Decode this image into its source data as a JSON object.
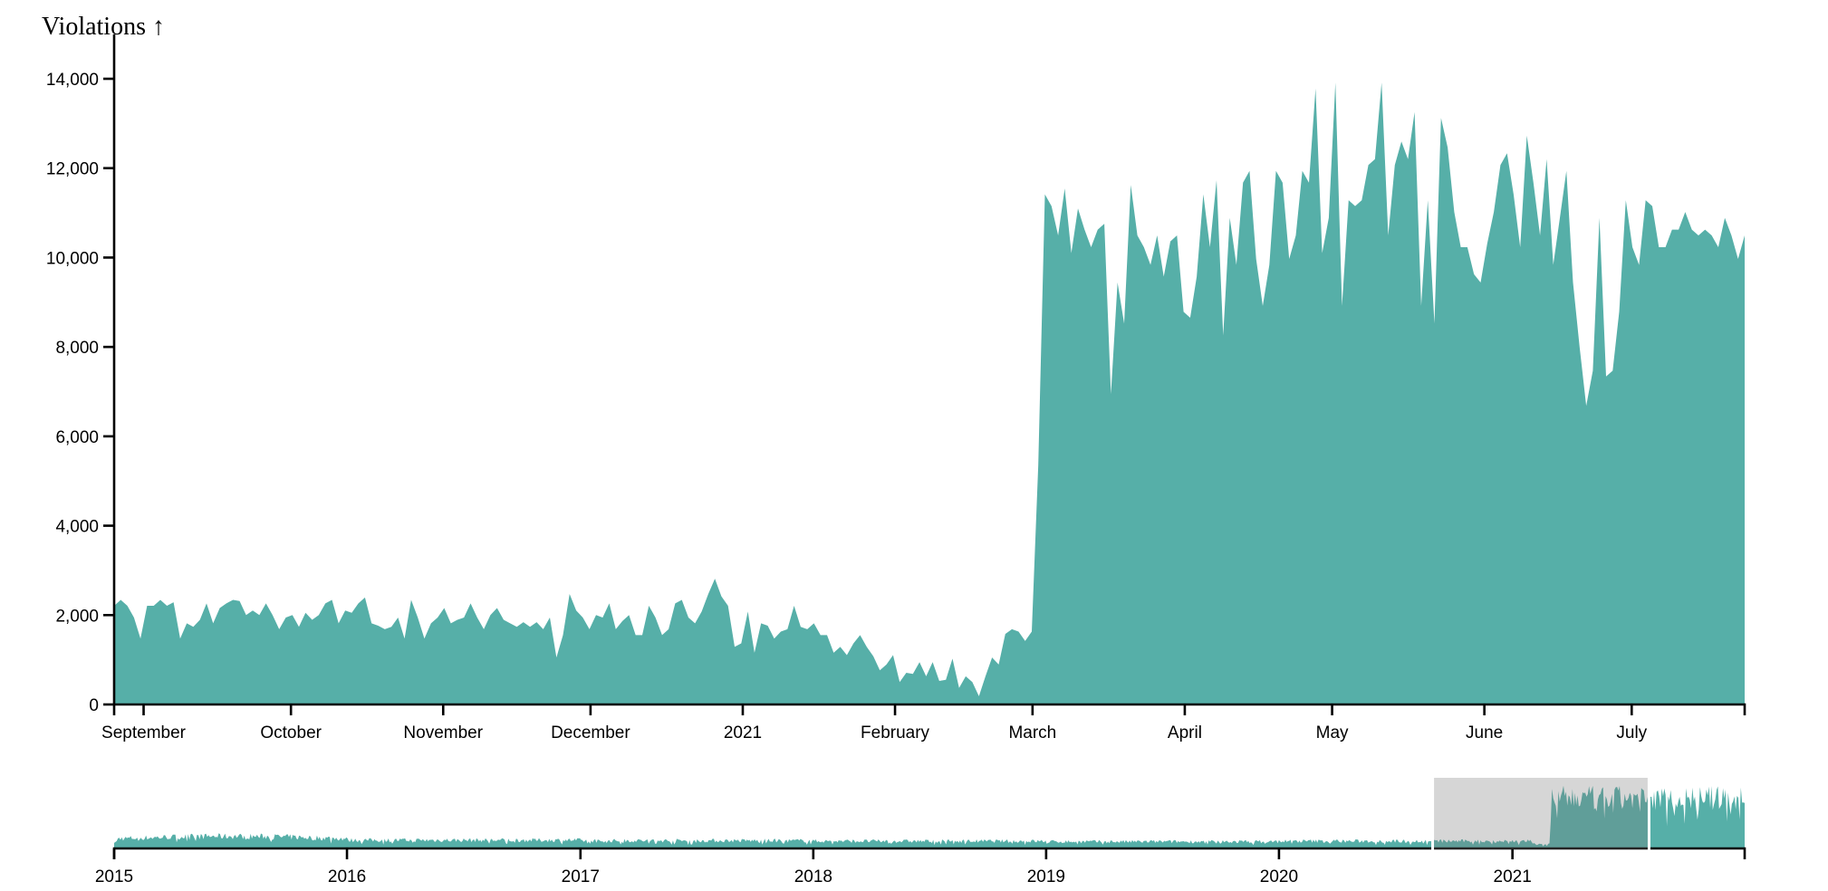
{
  "chart_data": {
    "type": "area",
    "title": "Violations ↑",
    "ylabel": "Violations",
    "xlabel": "",
    "color": "#56afa8",
    "grid": false,
    "legend": null,
    "main": {
      "start_date": "2020-08-26",
      "end_date": "2021-07-24",
      "ylim": [
        0,
        14000
      ],
      "y_ticks": [
        0,
        2000,
        4000,
        6000,
        8000,
        10000,
        12000,
        14000
      ],
      "y_tick_labels": [
        "0",
        "2,000",
        "4,000",
        "6,000",
        "8,000",
        "10,000",
        "12,000",
        "14,000"
      ],
      "x_ticks": [
        {
          "label": "September",
          "date": "2020-09-01"
        },
        {
          "label": "October",
          "date": "2020-10-01"
        },
        {
          "label": "November",
          "date": "2020-11-01"
        },
        {
          "label": "December",
          "date": "2020-12-01"
        },
        {
          "label": "2021",
          "date": "2021-01-01"
        },
        {
          "label": "February",
          "date": "2021-02-01"
        },
        {
          "label": "March",
          "date": "2021-03-01"
        },
        {
          "label": "April",
          "date": "2021-04-01"
        },
        {
          "label": "May",
          "date": "2021-05-01"
        },
        {
          "label": "June",
          "date": "2021-06-01"
        },
        {
          "label": "July",
          "date": "2021-07-01"
        }
      ],
      "values": [
        2209,
        2341,
        2209,
        1946,
        1473,
        2209,
        2209,
        2341,
        2209,
        2288,
        1473,
        1815,
        1736,
        1894,
        2262,
        1815,
        2157,
        2262,
        2341,
        2314,
        1999,
        2104,
        1999,
        2262,
        1999,
        1683,
        1946,
        1999,
        1736,
        2051,
        1894,
        1999,
        2262,
        2341,
        1815,
        2104,
        2051,
        2262,
        2393,
        1815,
        1762,
        1683,
        1736,
        1946,
        1473,
        2341,
        1946,
        1473,
        1815,
        1946,
        2157,
        1815,
        1894,
        1946,
        2262,
        1946,
        1683,
        1999,
        2157,
        1894,
        1815,
        1736,
        1841,
        1736,
        1841,
        1683,
        1946,
        1052,
        1552,
        2472,
        2104,
        1946,
        1683,
        1999,
        1946,
        2262,
        1683,
        1867,
        1999,
        1552,
        1552,
        2209,
        1946,
        1552,
        1683,
        2262,
        2341,
        1946,
        1815,
        2078,
        2472,
        2814,
        2420,
        2209,
        1289,
        1368,
        2078,
        1157,
        1815,
        1762,
        1473,
        1631,
        1683,
        2209,
        1736,
        1683,
        1815,
        1552,
        1552,
        1157,
        1289,
        1105,
        1368,
        1552,
        1289,
        1078,
        763,
        894,
        1105,
        500,
        710,
        684,
        947,
        631,
        947,
        526,
        552,
        1026,
        368,
        631,
        500,
        184,
        631,
        1052,
        894,
        1578,
        1683,
        1631,
        1420,
        1631,
        5365,
        11414,
        11151,
        10494,
        11546,
        10099,
        11099,
        10625,
        10231,
        10625,
        10757,
        6943,
        9442,
        8521,
        11625,
        10494,
        10231,
        9836,
        10494,
        9573,
        10362,
        10494,
        8784,
        8653,
        9573,
        11414,
        10231,
        11730,
        8258,
        10888,
        9836,
        11677,
        11940,
        9968,
        8916,
        9836,
        11940,
        11677,
        9968,
        10494,
        11940,
        11677,
        13781,
        10099,
        10888,
        13913,
        8916,
        11283,
        11151,
        11283,
        12072,
        12203,
        13913,
        10494,
        12072,
        12598,
        12203,
        13255,
        8916,
        11283,
        8521,
        13124,
        12466,
        11020,
        10231,
        10231,
        9626,
        9442,
        10310,
        11020,
        12072,
        12335,
        11414,
        10231,
        12729,
        11677,
        10494,
        12203,
        9836,
        10888,
        11940,
        9442,
        7995,
        6680,
        7469,
        10888,
        7338,
        7469,
        8784,
        11283,
        10231,
        9836,
        11283,
        11151,
        10231,
        10231,
        10625,
        10625,
        11020,
        10625,
        10494,
        10625,
        10494,
        10231,
        10888,
        10494,
        9968,
        10494
      ]
    },
    "overview": {
      "start_date": "2015-01-01",
      "end_date": "2021-12-31",
      "x_ticks": [
        "2015",
        "2016",
        "2017",
        "2018",
        "2019",
        "2020",
        "2021"
      ],
      "brush_selection": {
        "start": "2020-08-31",
        "end": "2021-08-01"
      },
      "profile": [
        {
          "period": "2015",
          "level": 2000
        },
        {
          "period": "2016",
          "level": 1700
        },
        {
          "period": "2017",
          "level": 1600
        },
        {
          "period": "2018",
          "level": 1500
        },
        {
          "period": "2019",
          "level": 1400
        },
        {
          "period": "2020",
          "level": 1500
        },
        {
          "period": "2021-03 to 2021-12",
          "level": 10500
        }
      ]
    }
  }
}
